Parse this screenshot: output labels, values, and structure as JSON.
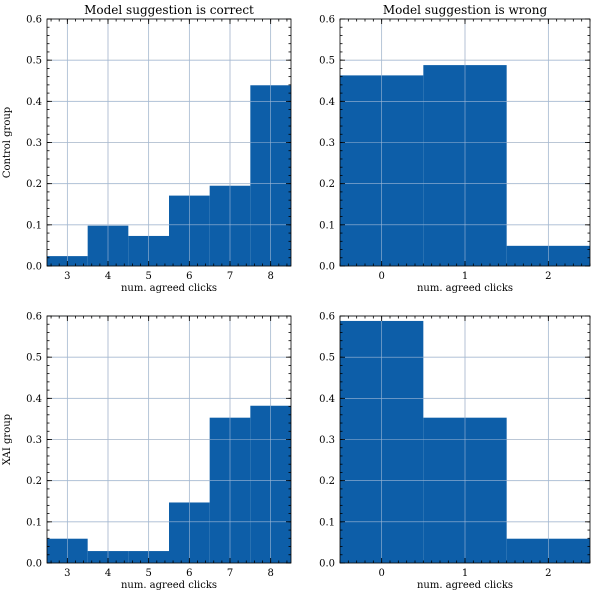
{
  "colors": {
    "bar": "#0d5ea8",
    "grid": "#c8c8c8"
  },
  "chart_data": [
    {
      "type": "bar",
      "title": "Model suggestion is correct",
      "xlabel": "num. agreed clicks",
      "ylabel": "Control group",
      "categories": [
        "3",
        "4",
        "5",
        "6",
        "7",
        "8"
      ],
      "x": [
        3,
        4,
        5,
        6,
        7,
        8
      ],
      "values": [
        0.024,
        0.098,
        0.073,
        0.171,
        0.195,
        0.439
      ],
      "xlim": [
        2.5,
        8.5
      ],
      "ylim": [
        0,
        0.6
      ],
      "xticks": [
        3,
        4,
        5,
        6,
        7,
        8
      ],
      "yticks": [
        "0.0",
        "0.1",
        "0.2",
        "0.3",
        "0.4",
        "0.5",
        "0.6"
      ],
      "grid": true
    },
    {
      "type": "bar",
      "title": "Model suggestion is wrong",
      "xlabel": "num. agreed clicks",
      "ylabel": "",
      "categories": [
        "0",
        "1",
        "2"
      ],
      "x": [
        0,
        1,
        2
      ],
      "values": [
        0.463,
        0.488,
        0.049
      ],
      "xlim": [
        -0.5,
        2.5
      ],
      "ylim": [
        0,
        0.6
      ],
      "xticks": [
        0,
        1,
        2
      ],
      "yticks": [
        "0.0",
        "0.1",
        "0.2",
        "0.3",
        "0.4",
        "0.5",
        "0.6"
      ],
      "grid": true
    },
    {
      "type": "bar",
      "title": "",
      "xlabel": "num. agreed clicks",
      "ylabel": "XAI group",
      "categories": [
        "3",
        "4",
        "5",
        "6",
        "7",
        "8"
      ],
      "x": [
        3,
        4,
        5,
        6,
        7,
        8
      ],
      "values": [
        0.059,
        0.029,
        0.029,
        0.147,
        0.353,
        0.382
      ],
      "xlim": [
        2.5,
        8.5
      ],
      "ylim": [
        0,
        0.6
      ],
      "xticks": [
        3,
        4,
        5,
        6,
        7,
        8
      ],
      "yticks": [
        "0.0",
        "0.1",
        "0.2",
        "0.3",
        "0.4",
        "0.5",
        "0.6"
      ],
      "grid": true
    },
    {
      "type": "bar",
      "title": "",
      "xlabel": "num. agreed clicks",
      "ylabel": "",
      "categories": [
        "0",
        "1",
        "2"
      ],
      "x": [
        0,
        1,
        2
      ],
      "values": [
        0.588,
        0.353,
        0.059
      ],
      "xlim": [
        -0.5,
        2.5
      ],
      "ylim": [
        0,
        0.6
      ],
      "xticks": [
        0,
        1,
        2
      ],
      "yticks": [
        "0.0",
        "0.1",
        "0.2",
        "0.3",
        "0.4",
        "0.5",
        "0.6"
      ],
      "grid": true
    }
  ]
}
